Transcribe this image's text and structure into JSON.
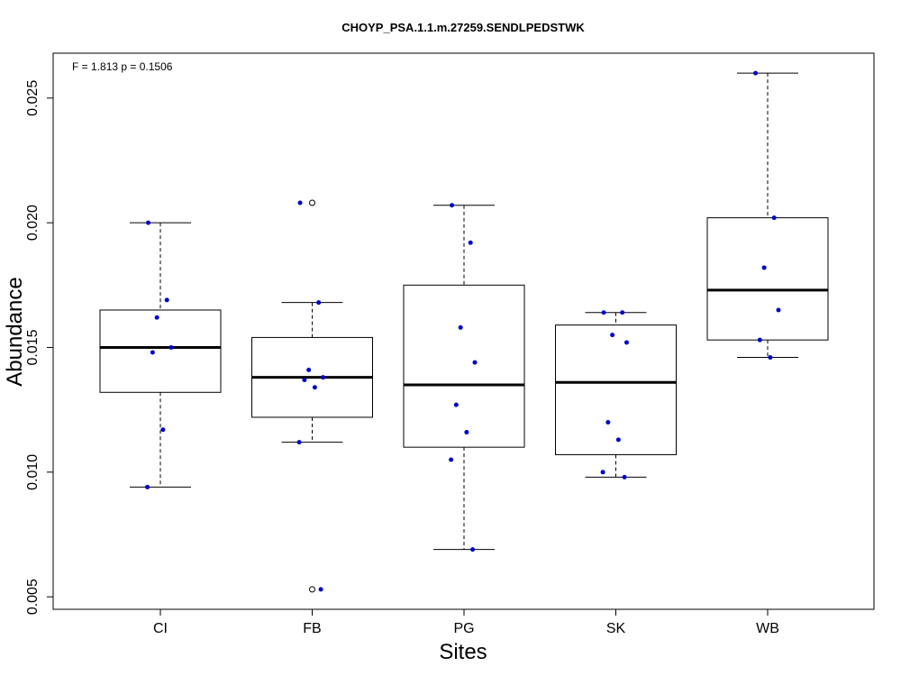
{
  "chart_data": {
    "type": "boxplot",
    "title": "CHOYP_PSA.1.1.m.27259.SENDLPEDSTWK",
    "annotation": "F = 1.813 p = 0.1506",
    "xlabel": "Sites",
    "ylabel": "Abundance",
    "ylim": [
      0.0045,
      0.0268
    ],
    "yticks": [
      0.005,
      0.01,
      0.015,
      0.02,
      0.025
    ],
    "ytick_labels": [
      "0.005",
      "0.010",
      "0.015",
      "0.020",
      "0.025"
    ],
    "grid": false,
    "point_color": "#0000cc",
    "categories": [
      "CI",
      "FB",
      "PG",
      "SK",
      "WB"
    ],
    "boxes": [
      {
        "name": "CI",
        "whisker_low": 0.0094,
        "q1": 0.0132,
        "median": 0.015,
        "q3": 0.0165,
        "whisker_high": 0.02,
        "outliers": []
      },
      {
        "name": "FB",
        "whisker_low": 0.0112,
        "q1": 0.0122,
        "median": 0.0138,
        "q3": 0.0154,
        "whisker_high": 0.0168,
        "outliers": [
          0.0208,
          0.0053
        ]
      },
      {
        "name": "PG",
        "whisker_low": 0.0069,
        "q1": 0.011,
        "median": 0.0135,
        "q3": 0.0175,
        "whisker_high": 0.0207,
        "outliers": []
      },
      {
        "name": "SK",
        "whisker_low": 0.0098,
        "q1": 0.0107,
        "median": 0.0136,
        "q3": 0.0159,
        "whisker_high": 0.0164,
        "outliers": []
      },
      {
        "name": "WB",
        "whisker_low": 0.0146,
        "q1": 0.0153,
        "median": 0.0173,
        "q3": 0.0202,
        "whisker_high": 0.026,
        "outliers": []
      }
    ],
    "points": [
      {
        "category": "CI",
        "values": [
          0.02,
          0.0169,
          0.0162,
          0.015,
          0.0148,
          0.0117,
          0.0094
        ]
      },
      {
        "category": "FB",
        "values": [
          0.0208,
          0.0168,
          0.0141,
          0.0138,
          0.0137,
          0.0134,
          0.0112,
          0.0053
        ]
      },
      {
        "category": "PG",
        "values": [
          0.0207,
          0.0192,
          0.0158,
          0.0144,
          0.0127,
          0.0116,
          0.0105,
          0.0069
        ]
      },
      {
        "category": "SK",
        "values": [
          0.0164,
          0.0164,
          0.0155,
          0.0152,
          0.012,
          0.0113,
          0.01,
          0.0098
        ]
      },
      {
        "category": "WB",
        "values": [
          0.026,
          0.0202,
          0.0182,
          0.0165,
          0.0153,
          0.0146
        ]
      }
    ]
  }
}
